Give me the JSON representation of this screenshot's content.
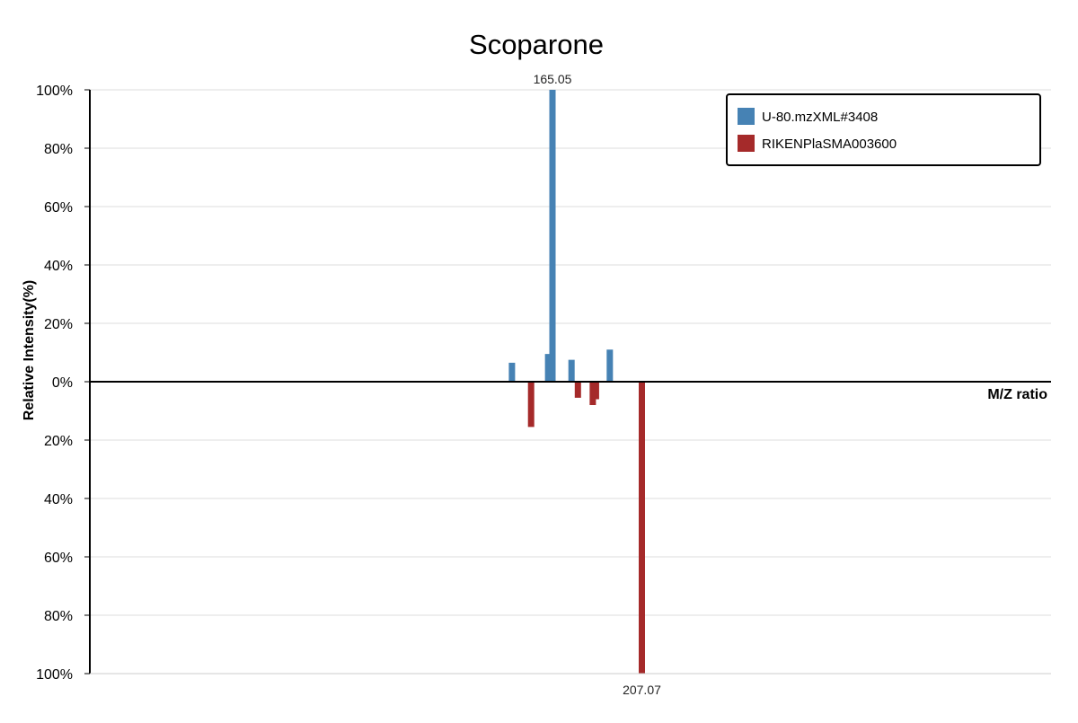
{
  "chart_data": {
    "type": "bar",
    "title": "Scoparone",
    "xlabel": "M/Z ratio",
    "ylabel": "Relative Intensity(%)",
    "ylim": [
      -100,
      100
    ],
    "yticks": [
      {
        "value": 100,
        "label": "100%"
      },
      {
        "value": 80,
        "label": "80%"
      },
      {
        "value": 60,
        "label": "60%"
      },
      {
        "value": 40,
        "label": "40%"
      },
      {
        "value": 20,
        "label": "20%"
      },
      {
        "value": 0,
        "label": "0%"
      },
      {
        "value": -20,
        "label": "20%"
      },
      {
        "value": -40,
        "label": "40%"
      },
      {
        "value": -60,
        "label": "60%"
      },
      {
        "value": -80,
        "label": "80%"
      },
      {
        "value": -100,
        "label": "100%"
      }
    ],
    "grid": true,
    "legend_position": "top-right",
    "series": [
      {
        "name": "U-80.mzXML#3408",
        "color": "#4682b4",
        "direction": "up",
        "peaks": [
          {
            "mz": 146.0,
            "intensity": 6.5
          },
          {
            "mz": 163.0,
            "intensity": 9.5
          },
          {
            "mz": 165.05,
            "intensity": 100,
            "label": "165.05"
          },
          {
            "mz": 174.0,
            "intensity": 7.5
          },
          {
            "mz": 192.0,
            "intensity": 11
          }
        ]
      },
      {
        "name": "RIKENPlaSMA003600",
        "color": "#a52a2a",
        "direction": "down",
        "peaks": [
          {
            "mz": 155.0,
            "intensity": 15.5
          },
          {
            "mz": 177.0,
            "intensity": 5.5
          },
          {
            "mz": 184.0,
            "intensity": 8
          },
          {
            "mz": 185.5,
            "intensity": 6
          },
          {
            "mz": 207.07,
            "intensity": 100,
            "label": "207.07"
          }
        ]
      }
    ]
  }
}
